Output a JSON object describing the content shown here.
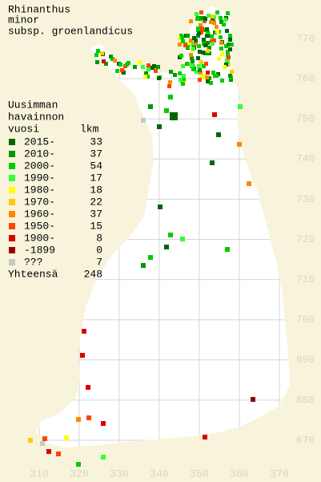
{
  "title": [
    "Rhinanthus",
    "minor",
    "subsp. groenlandicus"
  ],
  "legend": {
    "header": [
      "Uusimman",
      "havainnon",
      "vuosi"
    ],
    "count_header": "lkm",
    "items": [
      {
        "label": "2015-",
        "count": "33",
        "color": "#006600"
      },
      {
        "label": "2010-",
        "count": "37",
        "color": "#009900"
      },
      {
        "label": "2000-",
        "count": "54",
        "color": "#00cc00"
      },
      {
        "label": "1990-",
        "count": "17",
        "color": "#33ff33"
      },
      {
        "label": "1980-",
        "count": "18",
        "color": "#ffff00"
      },
      {
        "label": "1970-",
        "count": "22",
        "color": "#ffcc00"
      },
      {
        "label": "1960-",
        "count": "37",
        "color": "#ff8800"
      },
      {
        "label": "1950-",
        "count": "15",
        "color": "#ff4400"
      },
      {
        "label": "1900-",
        "count": "8",
        "color": "#dd0000"
      },
      {
        "label": "-1899",
        "count": "0",
        "color": "#990000"
      },
      {
        "label": "???",
        "count": "7",
        "color": "#c8c8c8"
      }
    ],
    "total_label": "Yhteensä",
    "total": "248"
  },
  "grid": {
    "y_ticks": [
      770,
      760,
      750,
      740,
      730,
      720,
      710,
      700,
      690,
      680,
      670
    ],
    "x_ticks": [
      310,
      320,
      330,
      340,
      350,
      360,
      370
    ]
  }
}
